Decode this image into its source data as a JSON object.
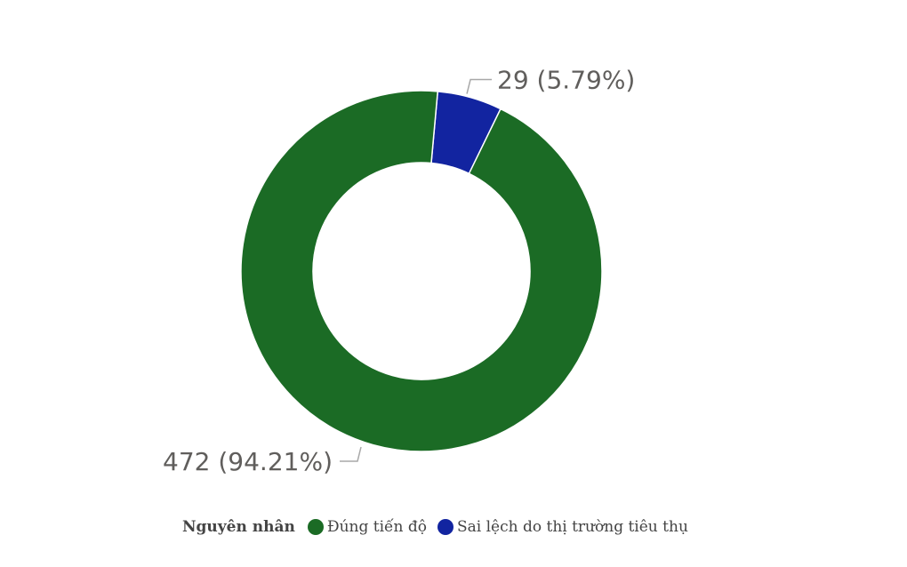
{
  "chart_data": {
    "type": "pie",
    "variant": "donut",
    "legend_title": "Nguyên nhân",
    "legend_position": "bottom",
    "categories": [
      "Đúng tiến độ",
      "Sai lệch do thị trường tiêu thụ"
    ],
    "values": [
      472,
      29
    ],
    "percentages": [
      "94.21%",
      "5.79%"
    ],
    "colors": [
      "#1b6b25",
      "#1224a0"
    ],
    "data_labels": [
      "472 (94.21%)",
      "29 (5.79%)"
    ]
  }
}
